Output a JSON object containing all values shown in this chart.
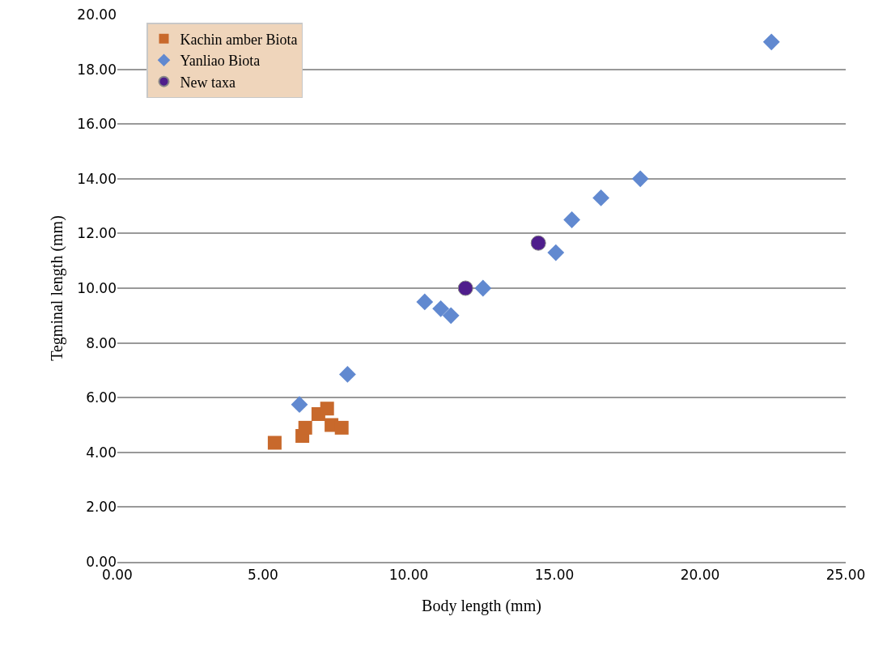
{
  "chart_data": {
    "type": "scatter",
    "xlabel": "Body length (mm)",
    "ylabel": "Tegminal length (mm)",
    "xlim": [
      0,
      25
    ],
    "xticks": [
      {
        "value": 0,
        "label": "0.00"
      },
      {
        "value": 5,
        "label": "5.00"
      },
      {
        "value": 10,
        "label": "10.00"
      },
      {
        "value": 15,
        "label": "15.00"
      },
      {
        "value": 20,
        "label": "20.00"
      },
      {
        "value": 25,
        "label": "25.00"
      }
    ],
    "ylim": [
      0,
      20
    ],
    "yticks": [
      {
        "value": 0,
        "label": "0.00"
      },
      {
        "value": 2,
        "label": "2.00"
      },
      {
        "value": 4,
        "label": "4.00"
      },
      {
        "value": 6,
        "label": "6.00"
      },
      {
        "value": 8,
        "label": "8.00"
      },
      {
        "value": 10,
        "label": "10.00"
      },
      {
        "value": 12,
        "label": "12.00"
      },
      {
        "value": 14,
        "label": "14.00"
      },
      {
        "value": 16,
        "label": "16.00"
      },
      {
        "value": 18,
        "label": "18.00"
      },
      {
        "value": 20,
        "label": "20.00"
      }
    ],
    "grid": "y",
    "legend": "top left",
    "series": [
      {
        "name": "Kachin amber Biota",
        "color": "#c8692c",
        "marker": "square",
        "x": [
          5.4,
          6.35,
          6.45,
          6.9,
          7.2,
          7.35,
          7.7
        ],
        "values": [
          4.35,
          4.6,
          4.9,
          5.4,
          5.6,
          5.0,
          4.9
        ]
      },
      {
        "name": "Yanliao Biota",
        "color": "#6189d0",
        "marker": "diamond",
        "x": [
          6.25,
          7.9,
          10.55,
          11.1,
          11.45,
          12.55,
          15.05,
          15.6,
          16.6,
          17.95,
          22.45
        ],
        "values": [
          5.75,
          6.85,
          9.5,
          9.25,
          9.0,
          10.0,
          11.3,
          12.5,
          13.3,
          14.0,
          19.0
        ]
      },
      {
        "name": "New taxa",
        "color": "#4f1e8c",
        "marker": "circle",
        "x": [
          11.95,
          14.45
        ],
        "values": [
          10.0,
          11.65
        ]
      }
    ]
  }
}
